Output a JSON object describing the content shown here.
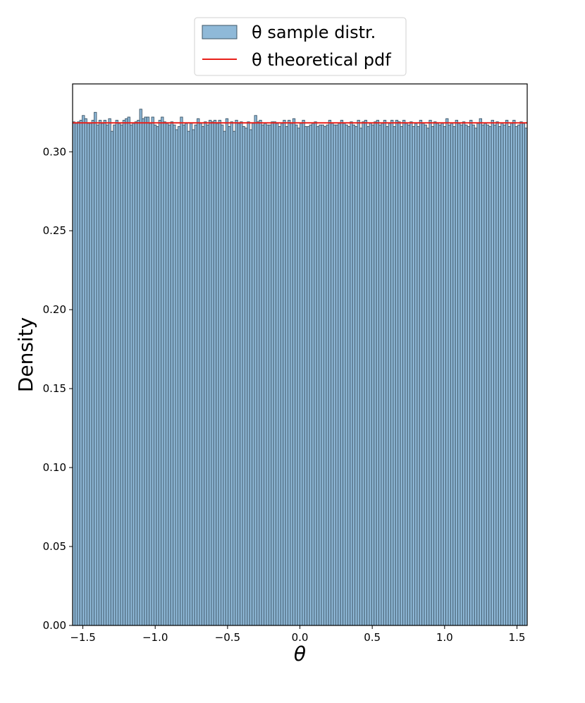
{
  "chart_data": {
    "type": "bar",
    "xlabel": "θ",
    "ylabel": "Density",
    "xlim": [
      -1.5708,
      1.5708
    ],
    "ylim": [
      0,
      0.343
    ],
    "x_ticks": [
      -1.5,
      -1.0,
      -0.5,
      0.0,
      0.5,
      1.0,
      1.5
    ],
    "x_tick_labels": [
      "−1.5",
      "−1.0",
      "−0.5",
      "0.0",
      "0.5",
      "1.0",
      "1.5"
    ],
    "y_ticks": [
      0.0,
      0.05,
      0.1,
      0.15,
      0.2,
      0.25,
      0.3
    ],
    "y_tick_labels": [
      "0.00",
      "0.05",
      "0.10",
      "0.15",
      "0.20",
      "0.25",
      "0.30"
    ],
    "grid": false,
    "legend_position": "top-center, above plot",
    "series": [
      {
        "name": "θ sample distr.",
        "kind": "histogram",
        "bin_range": [
          -1.5708,
          1.5708
        ],
        "values": [
          0.319,
          0.318,
          0.319,
          0.32,
          0.323,
          0.321,
          0.318,
          0.318,
          0.32,
          0.325,
          0.317,
          0.32,
          0.318,
          0.32,
          0.317,
          0.321,
          0.313,
          0.317,
          0.32,
          0.318,
          0.317,
          0.32,
          0.321,
          0.322,
          0.317,
          0.318,
          0.319,
          0.32,
          0.327,
          0.321,
          0.322,
          0.322,
          0.318,
          0.322,
          0.317,
          0.316,
          0.32,
          0.322,
          0.319,
          0.318,
          0.317,
          0.319,
          0.317,
          0.314,
          0.316,
          0.322,
          0.317,
          0.318,
          0.313,
          0.318,
          0.314,
          0.317,
          0.321,
          0.318,
          0.316,
          0.319,
          0.317,
          0.32,
          0.319,
          0.32,
          0.318,
          0.32,
          0.317,
          0.313,
          0.321,
          0.316,
          0.319,
          0.313,
          0.32,
          0.318,
          0.319,
          0.316,
          0.315,
          0.319,
          0.314,
          0.318,
          0.323,
          0.319,
          0.32,
          0.317,
          0.318,
          0.317,
          0.317,
          0.319,
          0.319,
          0.318,
          0.316,
          0.318,
          0.32,
          0.316,
          0.32,
          0.318,
          0.321,
          0.317,
          0.315,
          0.318,
          0.32,
          0.316,
          0.316,
          0.317,
          0.318,
          0.319,
          0.316,
          0.317,
          0.317,
          0.316,
          0.317,
          0.32,
          0.318,
          0.317,
          0.317,
          0.318,
          0.32,
          0.318,
          0.317,
          0.316,
          0.319,
          0.317,
          0.316,
          0.32,
          0.315,
          0.319,
          0.32,
          0.316,
          0.318,
          0.317,
          0.319,
          0.32,
          0.317,
          0.318,
          0.32,
          0.316,
          0.318,
          0.32,
          0.316,
          0.32,
          0.319,
          0.316,
          0.32,
          0.318,
          0.317,
          0.319,
          0.316,
          0.318,
          0.316,
          0.32,
          0.318,
          0.317,
          0.315,
          0.32,
          0.316,
          0.319,
          0.318,
          0.317,
          0.318,
          0.316,
          0.321,
          0.317,
          0.318,
          0.316,
          0.32,
          0.318,
          0.317,
          0.319,
          0.317,
          0.316,
          0.32,
          0.317,
          0.315,
          0.318,
          0.321,
          0.317,
          0.318,
          0.317,
          0.316,
          0.32,
          0.317,
          0.319,
          0.316,
          0.318,
          0.317,
          0.32,
          0.316,
          0.318,
          0.32,
          0.316,
          0.317,
          0.319,
          0.318,
          0.315
        ],
        "color": "#8fb9d8",
        "edge_color": "#3d5566"
      },
      {
        "name": "θ theoretical pdf",
        "kind": "line",
        "y": 0.3183,
        "color": "#e8201a"
      }
    ]
  }
}
